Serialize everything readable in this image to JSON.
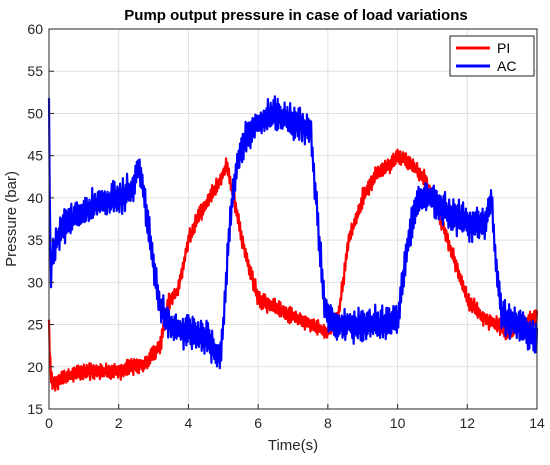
{
  "chart_data": {
    "type": "line",
    "title": "Pump output pressure in case of load variations",
    "xlabel": "Time(s)",
    "ylabel": "Pressure (bar)",
    "xlim": [
      0,
      14
    ],
    "ylim": [
      15,
      60
    ],
    "xticks": [
      0,
      2,
      4,
      6,
      8,
      10,
      12,
      14
    ],
    "yticks": [
      15,
      20,
      25,
      30,
      35,
      40,
      45,
      50,
      55,
      60
    ],
    "grid": true,
    "legend_position": "top-right",
    "series": [
      {
        "name": "PI",
        "color": "#ff0000",
        "noise": 1.2,
        "x": [
          0,
          0.05,
          0.1,
          0.3,
          1.0,
          2.0,
          2.8,
          3.2,
          3.4,
          3.7,
          4.0,
          4.3,
          4.6,
          4.9,
          5.1,
          5.3,
          5.6,
          6.0,
          6.5,
          7.0,
          7.5,
          8.0,
          8.3,
          8.6,
          9.0,
          9.4,
          9.8,
          10.0,
          10.4,
          10.8,
          11.2,
          11.6,
          12.0,
          12.4,
          12.8,
          13.2,
          13.6,
          14.0
        ],
        "y": [
          25,
          19,
          18,
          18.5,
          19.5,
          19.5,
          20.5,
          22.5,
          27.5,
          29,
          35,
          38,
          40,
          42,
          44,
          40,
          34,
          28,
          27,
          26,
          25,
          24,
          26,
          35,
          40,
          43,
          44,
          45,
          44,
          42,
          38,
          33,
          28,
          26,
          25,
          24,
          25,
          26
        ]
      },
      {
        "name": "AC",
        "color": "#0000ff",
        "noise": 2.4,
        "x": [
          0,
          0.05,
          0.1,
          0.2,
          0.5,
          1.0,
          1.5,
          2.0,
          2.4,
          2.6,
          2.8,
          3.0,
          3.2,
          3.5,
          4.0,
          4.5,
          4.9,
          5.0,
          5.2,
          5.4,
          5.6,
          6.0,
          6.5,
          7.0,
          7.5,
          7.7,
          7.9,
          8.2,
          8.6,
          9.0,
          9.5,
          10.0,
          10.3,
          10.6,
          11.0,
          11.5,
          12.0,
          12.5,
          12.7,
          12.8,
          13.0,
          13.5,
          14.0
        ],
        "y": [
          50,
          30,
          33,
          35,
          37,
          38.5,
          39.5,
          40,
          41,
          44,
          38,
          32,
          27,
          25,
          24,
          23.5,
          21,
          25,
          38,
          44,
          47,
          49,
          50,
          49,
          48,
          38,
          27,
          25,
          25,
          25,
          25,
          25.5,
          35,
          40,
          40,
          38,
          37,
          37,
          40,
          33,
          26,
          25,
          23
        ]
      }
    ]
  }
}
